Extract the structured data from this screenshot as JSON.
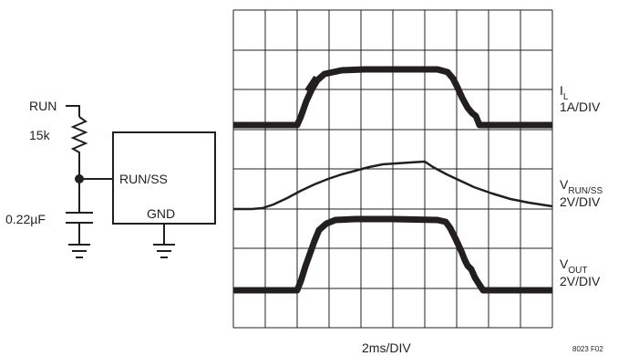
{
  "schematic": {
    "run_label": "RUN",
    "resistor_label": "15k",
    "capacitor_label": "0.22µF",
    "pin_run_ss": "RUN/SS",
    "pin_gnd": "GND"
  },
  "scope": {
    "traces": [
      {
        "main": "I",
        "sub": "L",
        "scale": "1A/DIV"
      },
      {
        "main": "V",
        "sub": "RUN/SS",
        "scale": "2V/DIV"
      },
      {
        "main": "V",
        "sub": "OUT",
        "scale": "2V/DIV"
      }
    ],
    "time_label": "2ms/DIV",
    "figure_id": "8023 F02"
  }
}
